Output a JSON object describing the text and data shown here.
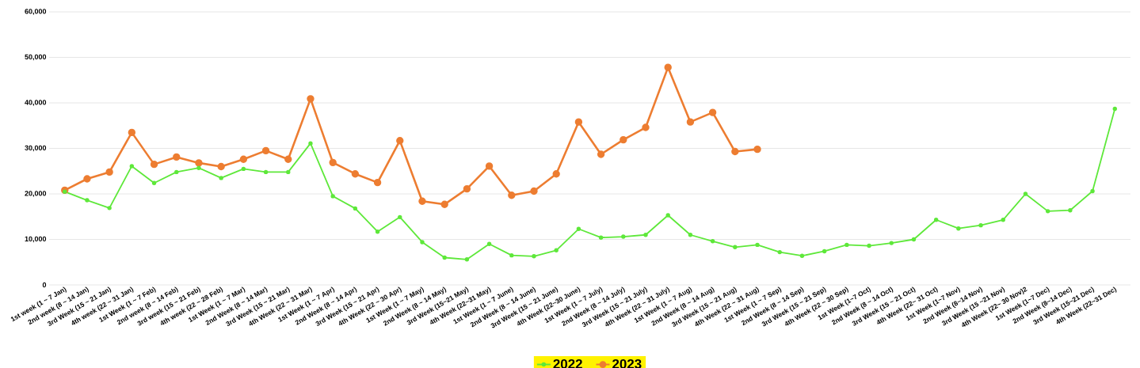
{
  "chart_data": {
    "type": "line",
    "categories": [
      "1st week (1 ~ 7 Jan)",
      "2nd week (8 ~ 14 Jan)",
      "3rd Week (15 ~ 21 Jan)",
      "4th week (22 ~ 31 Jan)",
      "1st Week (1 ~ 7 Feb)",
      "2nd week (8 ~ 14 Feb)",
      "3rd week (15 ~ 21 Feb)",
      "4th week (22 ~ 28 Feb)",
      "1st Week (1 ~ 7 Mar)",
      "2nd Week (8 ~ 14 Mar)",
      "3rd Week (15 ~ 21 Mar)",
      "4th Week (22 ~ 31 Mar)",
      "1st Week (1 ~ 7 Apr)",
      "2nd Week (8 ~ 14 Apr)",
      "3rd Week (15 ~ 21 Apr)",
      "4th Week (22 ~ 30 Apr)",
      "1st Week (1 ~ 7 May)",
      "2nd Week (8 ~ 14 May)",
      "3rd Week (15~21 May)",
      "4th Week (22~31 May)",
      "1st Week (1 ~ 7 June)",
      "2nd Week (8 ~ 14 June)",
      "3rd Week (15 ~ 21 June)",
      "4th Week (22~30 June)",
      "1st Week (1 ~ 7 July)",
      "2nd Week (8 ~ 14 July)",
      "3rd Week (15 ~ 21 July)",
      "4th Week (22 ~ 31 July)",
      "1st Week (1 ~ 7 Aug)",
      "2nd Week (8 ~ 14 Aug)",
      "3rd Week (15 ~ 21 Aug)",
      "4th Week (22 ~ 31 Aug)",
      "1st Week (1 ~ 7 Sep)",
      "2nd Week (8 ~ 14 Sep)",
      "3rd Week (15 ~ 21 Sep)",
      "4th Week (22 ~ 30 Sep)",
      "1st Week (1~7 Oct)",
      "2nd Week (8 ~ 14 Oct)",
      "3rd Week (15 ~ 21 Oct)",
      "4th Week (22~ 31 Oct)",
      "1st Week (1~7 Nov)",
      "2nd Week (8~14 Nov)",
      "3rd  Week (15 ~21 Nov)",
      "4th Week (22~ 30 Nov)2",
      "1st Week (1~7 Dec)",
      "2nd Week (8~14 Dec)",
      "3rd Week (15~21 Dec)",
      "4th Week (22~31 Dec)"
    ],
    "series": [
      {
        "name": "2022",
        "color": "#5ee83a",
        "values": [
          20500,
          18600,
          16900,
          26100,
          22400,
          24800,
          25700,
          23500,
          25500,
          24800,
          24800,
          31100,
          19500,
          16800,
          11700,
          14900,
          9400,
          6000,
          5600,
          9000,
          6500,
          6300,
          7600,
          12300,
          10400,
          10600,
          11000,
          15300,
          11000,
          9600,
          8300,
          8800,
          7200,
          6400,
          7400,
          8800,
          8600,
          9200,
          10000,
          14300,
          12400,
          13100,
          14300,
          20000,
          16200,
          16400,
          20600,
          38700
        ]
      },
      {
        "name": "2023",
        "color": "#ed7d31",
        "values": [
          20800,
          23300,
          24800,
          33500,
          26500,
          28100,
          26800,
          26000,
          27600,
          29500,
          27600,
          40900,
          26900,
          24400,
          22500,
          31700,
          18400,
          17700,
          21100,
          26100,
          19700,
          20600,
          24400,
          35800,
          28700,
          31900,
          34600,
          47800,
          35800,
          37900,
          29300,
          29800,
          null,
          null,
          null,
          null,
          null,
          null,
          null,
          null,
          null,
          null,
          null,
          null,
          null,
          null,
          null,
          null
        ]
      }
    ],
    "ylim": [
      0,
      60000
    ],
    "yticks": [
      0,
      {
        "value": 10000,
        "label": "10,000"
      },
      {
        "value": 20000,
        "label": "20,000"
      },
      {
        "value": 30000,
        "label": "30,000"
      },
      {
        "value": 40000,
        "label": "40,000"
      },
      {
        "value": 50000,
        "label": "50,000"
      },
      {
        "value": 60000,
        "label": "60,000"
      }
    ],
    "grid": "y",
    "legend": "bottom",
    "marker": "circle",
    "line_style": "solid"
  }
}
